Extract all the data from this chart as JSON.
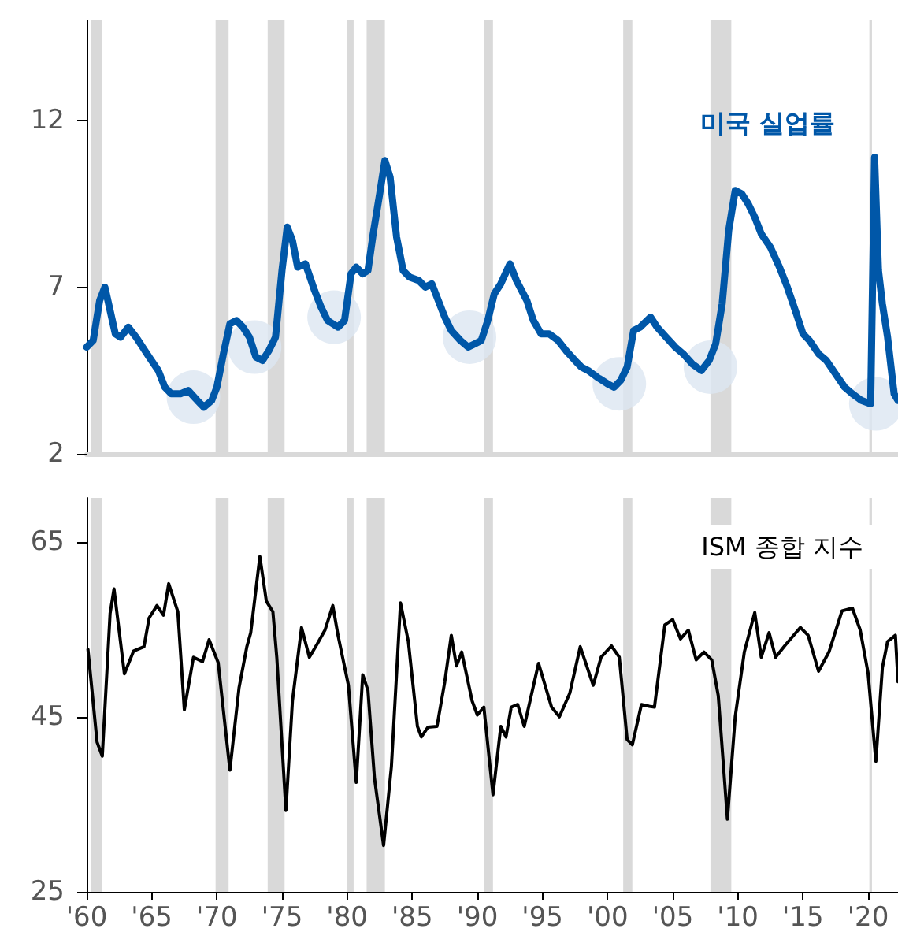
{
  "chart_data": [
    {
      "type": "line",
      "xlim": [
        1960,
        2022.3
      ],
      "ylim": [
        2,
        15
      ],
      "yticks": [
        2,
        7,
        12
      ],
      "tick_labels": "y",
      "bands": [
        {
          "axis": "x",
          "from": 1960.3,
          "to": 1961.2,
          "color": "#d9d9d9"
        },
        {
          "axis": "x",
          "from": 1969.9,
          "to": 1970.9,
          "color": "#d9d9d9"
        },
        {
          "axis": "x",
          "from": 1973.9,
          "to": 1975.2,
          "color": "#d9d9d9"
        },
        {
          "axis": "x",
          "from": 1980.0,
          "to": 1980.5,
          "color": "#d9d9d9"
        },
        {
          "axis": "x",
          "from": 1981.5,
          "to": 1982.9,
          "color": "#d9d9d9"
        },
        {
          "axis": "x",
          "from": 1990.5,
          "to": 1991.2,
          "color": "#d9d9d9"
        },
        {
          "axis": "x",
          "from": 2001.2,
          "to": 2001.9,
          "color": "#d9d9d9"
        },
        {
          "axis": "x",
          "from": 2007.9,
          "to": 2009.5,
          "color": "#d9d9d9"
        },
        {
          "axis": "x",
          "from": 2020.1,
          "to": 2020.3,
          "color": "#d9d9d9"
        }
      ],
      "series": [
        {
          "type": "scatter",
          "color": "#dce6f1",
          "x": [
            1968.2,
            1972.9,
            1979.0,
            1989.4,
            2000.9,
            2007.9,
            2020.6
          ],
          "values": [
            3.7,
            5.2,
            6.1,
            5.5,
            4.1,
            4.6,
            3.5
          ]
        },
        {
          "name": "미국 실업률",
          "color": "#0057a8",
          "x": [
            1960.0,
            1960.5,
            1961.0,
            1961.4,
            1961.8,
            1962.2,
            1962.6,
            1963.2,
            1963.8,
            1964.3,
            1964.8,
            1965.5,
            1966.0,
            1966.5,
            1967.2,
            1967.8,
            1968.5,
            1969.0,
            1969.6,
            1970.0,
            1970.5,
            1971.0,
            1971.5,
            1972.0,
            1972.5,
            1973.0,
            1973.5,
            1974.0,
            1974.5,
            1975.0,
            1975.4,
            1975.8,
            1976.2,
            1976.8,
            1977.5,
            1978.0,
            1978.5,
            1979.3,
            1979.8,
            1980.3,
            1980.7,
            1981.2,
            1981.6,
            1982.0,
            1982.5,
            1982.9,
            1983.3,
            1983.8,
            1984.3,
            1984.8,
            1985.5,
            1986.0,
            1986.5,
            1987.0,
            1987.5,
            1988.0,
            1988.7,
            1989.3,
            1989.8,
            1990.3,
            1990.8,
            1991.3,
            1991.8,
            1992.5,
            1993.0,
            1993.8,
            1994.3,
            1994.9,
            1995.5,
            1996.2,
            1996.8,
            1997.5,
            1998.0,
            1998.5,
            1999.2,
            2000.0,
            2000.5,
            2001.0,
            2001.5,
            2002.0,
            2002.5,
            2003.3,
            2003.8,
            2004.5,
            2005.2,
            2005.8,
            2006.5,
            2007.2,
            2007.8,
            2008.3,
            2008.8,
            2009.3,
            2009.8,
            2010.3,
            2010.8,
            2011.3,
            2011.8,
            2012.5,
            2013.2,
            2013.8,
            2014.5,
            2015.0,
            2015.5,
            2016.2,
            2016.8,
            2017.5,
            2018.2,
            2018.8,
            2019.5,
            2020.2,
            2020.5,
            2020.8,
            2021.1,
            2021.5,
            2022.0,
            2022.3
          ],
          "values": [
            5.2,
            5.4,
            6.6,
            7.0,
            6.3,
            5.6,
            5.5,
            5.8,
            5.5,
            5.2,
            4.9,
            4.5,
            4.0,
            3.8,
            3.8,
            3.9,
            3.6,
            3.4,
            3.6,
            4.0,
            5.0,
            5.9,
            6.0,
            5.8,
            5.5,
            4.9,
            4.8,
            5.1,
            5.5,
            7.5,
            8.8,
            8.4,
            7.6,
            7.7,
            6.9,
            6.4,
            6.0,
            5.8,
            6.0,
            7.4,
            7.6,
            7.4,
            7.5,
            8.6,
            9.8,
            10.8,
            10.3,
            8.5,
            7.5,
            7.3,
            7.2,
            7.0,
            7.1,
            6.6,
            6.1,
            5.7,
            5.4,
            5.2,
            5.3,
            5.4,
            6.0,
            6.8,
            7.1,
            7.7,
            7.2,
            6.6,
            6.0,
            5.6,
            5.6,
            5.4,
            5.1,
            4.8,
            4.6,
            4.5,
            4.3,
            4.1,
            4.0,
            4.2,
            4.6,
            5.7,
            5.8,
            6.1,
            5.8,
            5.5,
            5.2,
            5.0,
            4.7,
            4.5,
            4.8,
            5.3,
            6.5,
            8.7,
            9.9,
            9.8,
            9.5,
            9.1,
            8.6,
            8.2,
            7.6,
            7.0,
            6.2,
            5.6,
            5.4,
            5.0,
            4.8,
            4.4,
            4.0,
            3.8,
            3.6,
            3.5,
            10.9,
            7.5,
            6.5,
            5.5,
            3.8,
            3.6
          ]
        }
      ]
    },
    {
      "type": "line",
      "xlim": [
        1960,
        2022.3
      ],
      "ylim": [
        25,
        70
      ],
      "yticks": [
        25,
        45,
        65
      ],
      "xticks": [
        {
          "value": 1960,
          "label": "'60"
        },
        {
          "value": 1965,
          "label": "'65"
        },
        {
          "value": 1970,
          "label": "'70"
        },
        {
          "value": 1975,
          "label": "'75"
        },
        {
          "value": 1980,
          "label": "'80"
        },
        {
          "value": 1985,
          "label": "'85"
        },
        {
          "value": 1990,
          "label": "'90"
        },
        {
          "value": 1995,
          "label": "'95"
        },
        {
          "value": 2000,
          "label": "'00"
        },
        {
          "value": 2005,
          "label": "'05"
        },
        {
          "value": 2010,
          "label": "'10"
        },
        {
          "value": 2015,
          "label": "'15"
        },
        {
          "value": 2020,
          "label": "'20"
        }
      ],
      "bands": [
        {
          "axis": "x",
          "from": 1960.3,
          "to": 1961.2,
          "color": "#d9d9d9"
        },
        {
          "axis": "x",
          "from": 1969.9,
          "to": 1970.9,
          "color": "#d9d9d9"
        },
        {
          "axis": "x",
          "from": 1973.9,
          "to": 1975.2,
          "color": "#d9d9d9"
        },
        {
          "axis": "x",
          "from": 1980.0,
          "to": 1980.5,
          "color": "#d9d9d9"
        },
        {
          "axis": "x",
          "from": 1981.5,
          "to": 1982.9,
          "color": "#d9d9d9"
        },
        {
          "axis": "x",
          "from": 1990.5,
          "to": 1991.2,
          "color": "#d9d9d9"
        },
        {
          "axis": "x",
          "from": 2001.2,
          "to": 2001.9,
          "color": "#d9d9d9"
        },
        {
          "axis": "x",
          "from": 2007.9,
          "to": 2009.5,
          "color": "#d9d9d9"
        },
        {
          "axis": "x",
          "from": 2020.1,
          "to": 2020.3,
          "color": "#d9d9d9"
        }
      ],
      "series": [
        {
          "name": "ISM 종합 지수",
          "color": "#000000",
          "x": [
            1960.1,
            1960.8,
            1961.2,
            1961.8,
            1962.1,
            1962.9,
            1963.6,
            1964.4,
            1964.8,
            1965.4,
            1965.9,
            1966.3,
            1967.0,
            1967.5,
            1968.2,
            1968.9,
            1969.4,
            1970.1,
            1971.0,
            1971.7,
            1972.3,
            1972.6,
            1973.3,
            1973.8,
            1974.3,
            1974.6,
            1975.3,
            1975.8,
            1976.5,
            1977.1,
            1977.7,
            1978.3,
            1978.9,
            1979.3,
            1980.1,
            1980.7,
            1981.2,
            1981.6,
            1982.1,
            1982.8,
            1983.4,
            1984.1,
            1984.7,
            1985.4,
            1985.7,
            1986.2,
            1986.9,
            1987.5,
            1988.0,
            1988.4,
            1988.8,
            1989.6,
            1990.0,
            1990.5,
            1991.2,
            1991.8,
            1992.2,
            1992.6,
            1993.1,
            1993.6,
            1994.7,
            1995.7,
            1996.3,
            1997.1,
            1997.9,
            1998.9,
            1999.5,
            2000.3,
            2000.9,
            2001.5,
            2001.9,
            2002.6,
            2003.2,
            2003.6,
            2004.4,
            2005.0,
            2005.6,
            2006.2,
            2006.8,
            2007.4,
            2008.0,
            2008.5,
            2009.2,
            2009.8,
            2010.5,
            2011.3,
            2011.8,
            2012.4,
            2012.9,
            2013.6,
            2014.8,
            2015.4,
            2016.2,
            2017.0,
            2018.0,
            2018.8,
            2019.4,
            2020.0,
            2020.6,
            2021.1,
            2021.5,
            2022.1,
            2022.3
          ],
          "values": [
            52.7,
            42.1,
            40.5,
            56.8,
            59.6,
            49.9,
            52.5,
            53.0,
            56.3,
            57.7,
            56.6,
            60.2,
            57.0,
            45.8,
            51.8,
            51.3,
            53.8,
            51.2,
            38.9,
            48.3,
            53.0,
            54.6,
            63.3,
            58.2,
            57.0,
            51.8,
            34.3,
            46.8,
            55.2,
            51.8,
            53.3,
            54.9,
            57.7,
            54.3,
            48.6,
            37.5,
            49.8,
            48.0,
            38.0,
            30.3,
            39.3,
            58.0,
            53.6,
            43.9,
            42.7,
            43.8,
            43.9,
            49.0,
            54.3,
            50.8,
            52.4,
            46.8,
            45.2,
            46.1,
            36.1,
            43.9,
            42.7,
            46.1,
            46.4,
            43.9,
            51.1,
            46.1,
            45.0,
            47.7,
            53.0,
            48.6,
            51.8,
            53.1,
            51.8,
            42.4,
            41.8,
            46.4,
            46.2,
            46.1,
            55.5,
            56.1,
            53.9,
            54.9,
            51.5,
            52.4,
            51.5,
            47.4,
            33.3,
            45.0,
            52.4,
            56.9,
            51.8,
            54.6,
            51.8,
            53.1,
            55.2,
            54.3,
            50.2,
            52.4,
            57.1,
            57.4,
            54.9,
            50.0,
            39.9,
            50.6,
            53.6,
            54.3,
            49.0
          ]
        }
      ]
    }
  ]
}
